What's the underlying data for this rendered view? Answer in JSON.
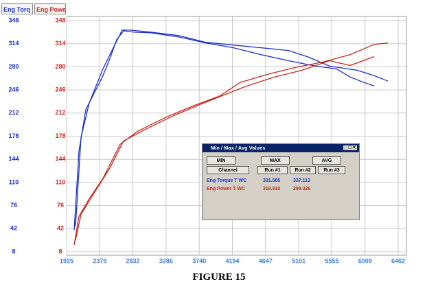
{
  "tabs": [
    "Eng Torq",
    "Eng Powe"
  ],
  "chart_data": {
    "type": "line",
    "xlim": [
      1925,
      6462
    ],
    "xticks": [
      1925,
      2379,
      2832,
      3286,
      3740,
      4194,
      4647,
      5101,
      5555,
      6009,
      6462
    ],
    "ylim": [
      8,
      348
    ],
    "yticks": [
      8,
      42,
      76,
      110,
      144,
      178,
      212,
      246,
      280,
      314,
      348
    ],
    "y2lim": [
      8,
      348
    ],
    "y2ticks": [
      8,
      42,
      76,
      110,
      144,
      178,
      212,
      246,
      280,
      314,
      348
    ],
    "grid": true,
    "series": [
      {
        "color": "#1c2fc4",
        "x": [
          2028,
          2094,
          2188,
          2329,
          2423,
          2517,
          2611,
          2705,
          2846,
          3080,
          3456,
          3832,
          4208,
          4583,
          4961,
          5335,
          5617,
          5805,
          5993,
          6133
        ],
        "values": [
          40,
          156,
          217,
          247,
          267,
          292,
          320,
          333,
          331,
          330,
          324,
          315,
          308,
          298,
          289,
          281,
          277,
          265,
          257,
          252
        ]
      },
      {
        "color": "#1c2fc4",
        "x": [
          2047,
          2122,
          2235,
          2423,
          2564,
          2686,
          2798,
          3080,
          3456,
          3832,
          4208,
          4583,
          4961,
          5241,
          5523,
          5899,
          6133,
          6321
        ],
        "values": [
          45,
          176,
          227,
          277,
          308,
          334,
          334,
          331,
          326,
          316,
          312,
          308,
          304,
          294,
          281,
          275,
          267,
          259
        ]
      },
      {
        "color": "#c4281c",
        "axis": "y2",
        "x": [
          2028,
          2094,
          2235,
          2423,
          2658,
          2893,
          3268,
          3644,
          4019,
          4301,
          4677,
          5053,
          5429,
          5805,
          6133,
          6321
        ],
        "values": [
          18,
          60,
          86,
          116,
          166,
          185,
          205,
          222,
          237,
          257,
          269,
          279,
          287,
          298,
          313,
          315
        ]
      },
      {
        "color": "#c4281c",
        "axis": "y2",
        "x": [
          2047,
          2122,
          2282,
          2517,
          2705,
          2987,
          3362,
          3738,
          4113,
          4395,
          4771,
          5147,
          5523,
          5805,
          6133
        ],
        "values": [
          25,
          63,
          91,
          131,
          171,
          187,
          207,
          224,
          240,
          252,
          265,
          275,
          289,
          282,
          295
        ]
      }
    ]
  },
  "dialog": {
    "title": "Min / Max / Avg Values",
    "buttons": [
      "MIN",
      "MAX",
      "AVG"
    ],
    "headers": [
      "Channel",
      "Run #1",
      "Run #2",
      "Run #3"
    ],
    "rows": [
      [
        "Eng Torque T WC",
        "331.585",
        "337.113"
      ],
      [
        "Eng Power T WC",
        "318.910",
        "299.326"
      ]
    ]
  },
  "caption": "FIGURE 15"
}
